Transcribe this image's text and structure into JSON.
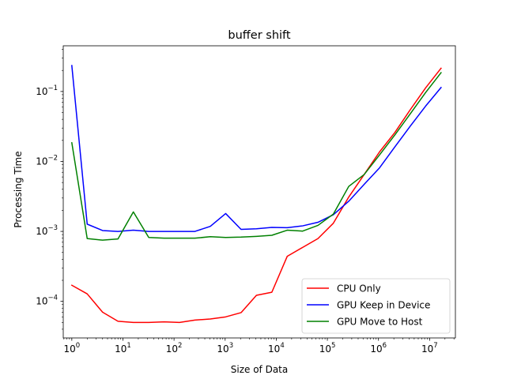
{
  "chart_data": {
    "type": "line",
    "title": "buffer shift",
    "xlabel": "Size of Data",
    "ylabel": "Processing Time",
    "xscale": "log",
    "yscale": "log",
    "xlim": [
      0.68,
      32000000
    ],
    "ylim": [
      3e-05,
      0.45
    ],
    "x_ticks": [
      {
        "value": 1,
        "base": "10",
        "exp": "0"
      },
      {
        "value": 10,
        "base": "10",
        "exp": "1"
      },
      {
        "value": 100,
        "base": "10",
        "exp": "2"
      },
      {
        "value": 1000,
        "base": "10",
        "exp": "3"
      },
      {
        "value": 10000,
        "base": "10",
        "exp": "4"
      },
      {
        "value": 100000,
        "base": "10",
        "exp": "5"
      },
      {
        "value": 1000000,
        "base": "10",
        "exp": "6"
      },
      {
        "value": 10000000,
        "base": "10",
        "exp": "7"
      }
    ],
    "y_ticks": [
      {
        "value": 0.0001,
        "base": "10",
        "exp": "−4"
      },
      {
        "value": 0.001,
        "base": "10",
        "exp": "−3"
      },
      {
        "value": 0.01,
        "base": "10",
        "exp": "−2"
      },
      {
        "value": 0.1,
        "base": "10",
        "exp": "−1"
      }
    ],
    "grid": false,
    "legend_position": "lower-right",
    "x": [
      1,
      2,
      4,
      8,
      16,
      32,
      64,
      128,
      256,
      512,
      1024,
      2048,
      4096,
      8192,
      16384,
      32768,
      65536,
      131072,
      262144,
      524288,
      1048576,
      2097152,
      4194304,
      8388608,
      16777216
    ],
    "series": [
      {
        "name": "CPU Only",
        "color": "#ff0000",
        "values": [
          0.00017,
          0.000128,
          7e-05,
          5.2e-05,
          5e-05,
          5e-05,
          5.1e-05,
          5e-05,
          5.4e-05,
          5.6e-05,
          6e-05,
          6.9e-05,
          0.000122,
          0.000135,
          0.00044,
          0.00059,
          0.00079,
          0.00131,
          0.0031,
          0.0065,
          0.0137,
          0.026,
          0.055,
          0.113,
          0.215
        ]
      },
      {
        "name": "GPU Keep in Device",
        "color": "#0000ff",
        "values": [
          0.235,
          0.00127,
          0.00103,
          0.001,
          0.00104,
          0.001,
          0.001,
          0.001,
          0.001,
          0.00118,
          0.0018,
          0.00107,
          0.00109,
          0.00114,
          0.00113,
          0.0012,
          0.00135,
          0.00173,
          0.0027,
          0.0047,
          0.0081,
          0.0162,
          0.032,
          0.062,
          0.114
        ]
      },
      {
        "name": "GPU Move to Host",
        "color": "#008000",
        "values": [
          0.0185,
          0.00079,
          0.00075,
          0.00078,
          0.0019,
          0.00082,
          0.0008,
          0.0008,
          0.0008,
          0.00084,
          0.00082,
          0.00083,
          0.00085,
          0.00088,
          0.00104,
          0.00101,
          0.00122,
          0.00177,
          0.0044,
          0.0065,
          0.0124,
          0.024,
          0.048,
          0.097,
          0.186
        ]
      }
    ]
  }
}
